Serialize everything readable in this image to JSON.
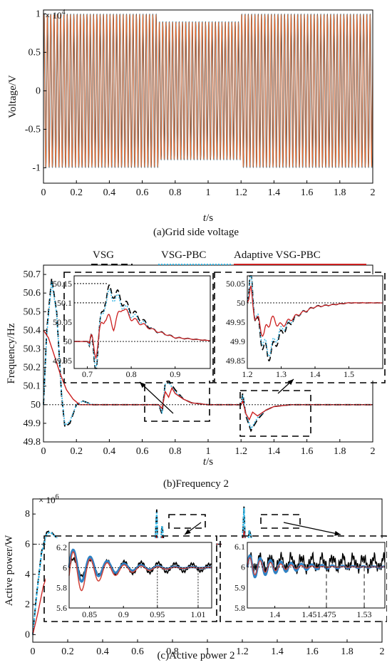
{
  "chart_data": [
    {
      "id": "a",
      "type": "line",
      "caption": "(a)Grid side voltage",
      "xlabel_italic": "t",
      "xlabel_unit": "/s",
      "ylabel": "Voltage/V",
      "multiplier": "× 10",
      "multiplier_exp": "4",
      "xlim": [
        0,
        2
      ],
      "ylim": [
        -1.2,
        1.05
      ],
      "xticks": [
        "0",
        "0.2",
        "0.4",
        "0.6",
        "0.8",
        "1",
        "1.2",
        "1.4",
        "1.6",
        "1.8",
        "2"
      ],
      "yticks": [
        "1",
        "0.5",
        "0",
        "-0.5",
        "-1"
      ],
      "segments": [
        {
          "t0": 0,
          "t1": 0.7,
          "amplitude": 1.0
        },
        {
          "t0": 0.7,
          "t1": 1.2,
          "amplitude": 0.9
        },
        {
          "t0": 1.2,
          "t1": 2.0,
          "amplitude": 1.0
        }
      ],
      "colors": [
        "#000000",
        "#33a9e0",
        "#f06a2a"
      ]
    },
    {
      "id": "b",
      "type": "line",
      "caption": "(b)Frequency 2",
      "xlabel_italic": "t",
      "xlabel_unit": "/s",
      "ylabel": "Frequency/Hz",
      "xlim": [
        0,
        2
      ],
      "ylim": [
        49.8,
        50.75
      ],
      "xticks": [
        "0",
        "0.2",
        "0.4",
        "0.6",
        "0.8",
        "1",
        "1.2",
        "1.4",
        "1.6",
        "1.8",
        "2"
      ],
      "yticks": [
        "50.7",
        "50.6",
        "50.5",
        "50.4",
        "50.3",
        "50.2",
        "50.1",
        "50",
        "49.9",
        "49.8"
      ],
      "legend": [
        {
          "name": "VSG",
          "color": "#000000",
          "style": "dashed"
        },
        {
          "name": "VSG-PBC",
          "color": "#33b5e5",
          "style": "dotted"
        },
        {
          "name": "Adaptive VSG-PBC",
          "color": "#cc1f1f",
          "style": "solid"
        }
      ],
      "series": [
        {
          "name": "VSG",
          "x": [
            0,
            0.02,
            0.05,
            0.08,
            0.11,
            0.13,
            0.16,
            0.2,
            0.24,
            0.3,
            0.4,
            0.7,
            0.72,
            0.74,
            0.76,
            0.8,
            0.85,
            0.9,
            1.0,
            1.2,
            1.21,
            1.23,
            1.26,
            1.3,
            1.35,
            1.4,
            1.5,
            1.6,
            2.0
          ],
          "y": [
            50.0,
            50.4,
            50.68,
            50.5,
            50.05,
            49.88,
            49.9,
            50.0,
            50.02,
            50.0,
            50.0,
            50.0,
            49.95,
            50.12,
            50.13,
            50.08,
            50.03,
            50.01,
            50.0,
            50.0,
            50.06,
            49.94,
            49.86,
            49.92,
            49.97,
            49.99,
            50.0,
            50.0,
            50.0
          ]
        },
        {
          "name": "VSG-PBC",
          "x": [
            0,
            0.02,
            0.05,
            0.08,
            0.11,
            0.13,
            0.16,
            0.2,
            0.24,
            0.3,
            0.4,
            0.7,
            0.72,
            0.74,
            0.76,
            0.8,
            0.85,
            0.9,
            1.0,
            1.2,
            1.21,
            1.23,
            1.26,
            1.3,
            1.35,
            1.4,
            1.5,
            1.6,
            2.0
          ],
          "y": [
            50.0,
            50.38,
            50.66,
            50.49,
            50.06,
            49.89,
            49.91,
            50.0,
            50.02,
            50.0,
            50.0,
            50.0,
            49.96,
            50.11,
            50.12,
            50.07,
            50.03,
            50.01,
            50.0,
            50.0,
            50.05,
            49.95,
            49.87,
            49.93,
            49.97,
            49.99,
            50.0,
            50.0,
            50.0
          ]
        },
        {
          "name": "Adaptive VSG-PBC",
          "x": [
            0,
            0.03,
            0.06,
            0.1,
            0.14,
            0.18,
            0.22,
            0.3,
            0.4,
            0.7,
            0.72,
            0.74,
            0.76,
            0.78,
            0.8,
            0.85,
            0.9,
            1.0,
            1.2,
            1.21,
            1.23,
            1.25,
            1.27,
            1.3,
            1.35,
            1.4,
            1.5,
            2.0
          ],
          "y": [
            50.4,
            50.36,
            50.28,
            50.17,
            50.08,
            50.03,
            50.0,
            50.0,
            50.0,
            50.0,
            49.98,
            50.07,
            50.04,
            50.09,
            50.06,
            50.03,
            50.01,
            50.0,
            50.0,
            50.02,
            49.95,
            49.92,
            49.96,
            49.94,
            49.97,
            49.99,
            50.0,
            50.0
          ]
        }
      ],
      "inset1": {
        "xticks": [
          "0.7",
          "0.8",
          "0.9"
        ],
        "yticks": [
          "50.15",
          "50.1",
          "50.05",
          "50",
          "49.95"
        ],
        "xlim": [
          0.67,
          0.98
        ],
        "ylim": [
          49.93,
          50.17
        ],
        "refs": [
          50.15,
          50.1
        ]
      },
      "inset2": {
        "xticks": [
          "1.2",
          "1.3",
          "1.4",
          "1.5"
        ],
        "yticks": [
          "50.05",
          "50",
          "49.95",
          "49.9",
          "49.85"
        ],
        "xlim": [
          1.2,
          1.6
        ],
        "ylim": [
          49.83,
          50.07
        ]
      }
    },
    {
      "id": "c",
      "type": "line",
      "caption": "(c)Active power 2",
      "ylabel": "Active power/W",
      "multiplier": "× 10",
      "multiplier_exp": "6",
      "xlim": [
        0,
        2
      ],
      "ylim": [
        -0.5,
        9
      ],
      "xticks": [
        "0",
        "0.2",
        "0.4",
        "0.6",
        "0.8",
        "1",
        "1.2",
        "1.4",
        "1.6",
        "1.8",
        "2"
      ],
      "yticks": [
        "8",
        "6",
        "4",
        "2",
        "0"
      ],
      "series": [
        {
          "name": "VSG",
          "x": [
            0,
            0.02,
            0.05,
            0.08,
            0.1,
            0.13,
            0.16,
            0.2,
            0.3,
            0.7,
            0.71,
            0.72,
            0.74,
            0.76,
            0.8,
            0.9,
            1.0,
            1.2,
            1.21,
            1.22,
            1.24,
            1.27,
            1.3,
            1.4,
            2.0
          ],
          "y": [
            0,
            2.5,
            5.5,
            6.8,
            6.9,
            6.5,
            6.1,
            6.0,
            6.0,
            6.0,
            8.3,
            4.0,
            7.3,
            5.2,
            6.3,
            6.05,
            6.0,
            6.0,
            8.6,
            4.5,
            7.0,
            5.5,
            6.2,
            6.05,
            6.0
          ]
        },
        {
          "name": "VSG-PBC",
          "x": [
            0,
            0.02,
            0.05,
            0.08,
            0.1,
            0.13,
            0.16,
            0.2,
            0.3,
            0.7,
            0.71,
            0.72,
            0.74,
            0.76,
            0.8,
            0.9,
            1.0,
            1.2,
            1.21,
            1.22,
            1.24,
            1.27,
            1.3,
            1.4,
            2.0
          ],
          "y": [
            0,
            2.4,
            5.4,
            6.7,
            6.8,
            6.5,
            6.1,
            6.0,
            6.0,
            6.0,
            8.1,
            4.2,
            7.2,
            5.3,
            6.25,
            6.05,
            6.0,
            6.0,
            8.4,
            4.7,
            6.9,
            5.6,
            6.15,
            6.05,
            6.0
          ]
        },
        {
          "name": "Adaptive VSG-PBC",
          "x": [
            0,
            0.03,
            0.06,
            0.1,
            0.14,
            0.18,
            0.22,
            0.3,
            0.7,
            0.71,
            0.72,
            0.74,
            0.77,
            0.8,
            0.9,
            1.0,
            1.2,
            1.21,
            1.23,
            1.26,
            1.3,
            1.4,
            2.0
          ],
          "y": [
            0,
            1.5,
            3.2,
            4.6,
            5.4,
            5.8,
            6.0,
            6.0,
            6.0,
            6.6,
            5.0,
            6.5,
            5.6,
            6.1,
            6.0,
            6.0,
            6.0,
            6.9,
            5.4,
            6.3,
            5.9,
            6.0,
            6.0
          ]
        }
      ],
      "inset1": {
        "xticks": [
          "0.85",
          "0.9",
          "0.95",
          "1.01"
        ],
        "yticks": [
          "6.2",
          "6",
          "5.8",
          "5.6"
        ],
        "xlim": [
          0.82,
          1.03
        ],
        "ylim": [
          5.6,
          6.25
        ]
      },
      "inset2": {
        "xticks": [
          "1.4",
          "1.45",
          "1.475",
          "1.53"
        ],
        "yticks": [
          "6.1",
          "6",
          "5.9",
          "5.8"
        ],
        "xlim": [
          1.36,
          1.56
        ],
        "ylim": [
          5.8,
          6.12
        ]
      }
    }
  ]
}
